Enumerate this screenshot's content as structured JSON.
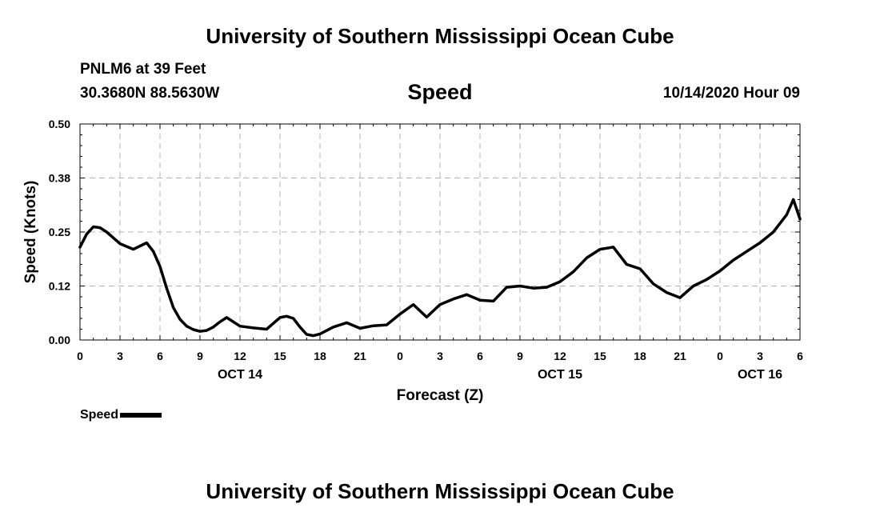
{
  "header": {
    "title": "University of Southern Mississippi Ocean Cube",
    "station": "PNLM6 at 39 Feet",
    "coords": "30.3680N 88.5630W",
    "chart_title": "Speed",
    "datetime": "10/14/2020 Hour 09"
  },
  "footer": {
    "title": "University of Southern Mississippi Ocean Cube"
  },
  "legend": {
    "label": "Speed"
  },
  "colors": {
    "line": "#000000",
    "grid": "#b4b4b4",
    "background": "#ffffff"
  },
  "chart_data": {
    "type": "line",
    "title": "Speed",
    "xlabel": "Forecast (Z)",
    "ylabel": "Speed (Knots)",
    "xlim": [
      0,
      54
    ],
    "ylim": [
      0.0,
      0.5
    ],
    "x_ticks": [
      0,
      3,
      6,
      9,
      12,
      15,
      18,
      21,
      24,
      27,
      30,
      33,
      36,
      39,
      42,
      45,
      48,
      51,
      54
    ],
    "x_tick_labels": [
      "0",
      "3",
      "6",
      "9",
      "12",
      "15",
      "18",
      "21",
      "0",
      "3",
      "6",
      "9",
      "12",
      "15",
      "18",
      "21",
      "0",
      "3",
      "6"
    ],
    "y_ticks": [
      0.0,
      0.125,
      0.25,
      0.375,
      0.5
    ],
    "y_tick_labels": [
      "0.00",
      "0.12",
      "0.25",
      "0.38",
      "0.50"
    ],
    "date_labels": [
      {
        "x": 12,
        "label": "OCT 14"
      },
      {
        "x": 36,
        "label": "OCT 15"
      },
      {
        "x": 51,
        "label": "OCT 16"
      }
    ],
    "grid": true,
    "legend_position": "bottom-left",
    "series": [
      {
        "name": "Speed",
        "x": [
          0,
          0.5,
          1,
          1.5,
          2,
          3,
          4,
          5,
          5.5,
          6,
          6.5,
          7,
          7.5,
          8,
          8.5,
          9,
          9.5,
          10,
          10.5,
          11,
          12,
          13,
          14,
          15,
          15.5,
          16,
          16.5,
          17,
          17.5,
          18,
          19,
          20,
          21,
          22,
          23,
          24,
          25,
          26,
          27,
          28,
          29,
          30,
          31,
          32,
          33,
          34,
          35,
          36,
          37,
          38,
          39,
          40,
          41,
          42,
          43,
          44,
          45,
          46,
          47,
          48,
          49,
          50,
          51,
          52,
          53,
          53.5,
          54
        ],
        "values": [
          0.215,
          0.245,
          0.262,
          0.26,
          0.25,
          0.223,
          0.21,
          0.225,
          0.205,
          0.17,
          0.12,
          0.075,
          0.048,
          0.032,
          0.024,
          0.02,
          0.022,
          0.03,
          0.042,
          0.052,
          0.032,
          0.028,
          0.025,
          0.052,
          0.055,
          0.05,
          0.03,
          0.013,
          0.01,
          0.014,
          0.03,
          0.04,
          0.027,
          0.033,
          0.035,
          0.06,
          0.082,
          0.053,
          0.082,
          0.095,
          0.105,
          0.092,
          0.09,
          0.122,
          0.125,
          0.12,
          0.122,
          0.135,
          0.158,
          0.19,
          0.21,
          0.215,
          0.175,
          0.165,
          0.13,
          0.11,
          0.098,
          0.125,
          0.14,
          0.16,
          0.185,
          0.205,
          0.225,
          0.25,
          0.29,
          0.325,
          0.28
        ]
      }
    ]
  }
}
